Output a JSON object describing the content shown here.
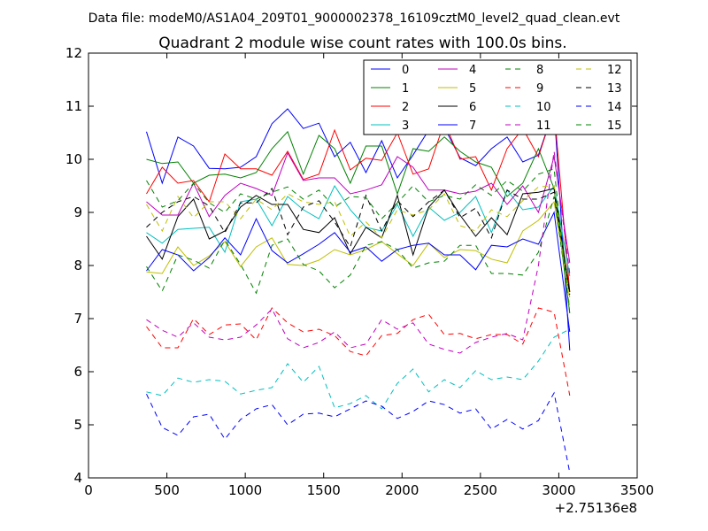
{
  "window": {
    "suptitle": "Data file: modeM0/AS1A04_209T01_9000002378_16109cztM0_level2_quad_clean.evt"
  },
  "chart_data": {
    "type": "line",
    "title": "Quadrant 2 module wise count rates with 100.0s bins.",
    "xlabel": "",
    "ylabel": "",
    "x_offset_label": "+2.75136e8",
    "xlim": [
      0,
      3500
    ],
    "ylim": [
      4,
      12
    ],
    "x_ticks": [
      0,
      500,
      1000,
      1500,
      2000,
      2500,
      3000,
      3500
    ],
    "y_ticks": [
      4,
      5,
      6,
      7,
      8,
      9,
      10,
      11,
      12
    ],
    "grid": false,
    "legend_position": "top-right",
    "x": [
      370,
      470,
      570,
      670,
      770,
      870,
      970,
      1070,
      1170,
      1270,
      1370,
      1470,
      1570,
      1670,
      1770,
      1870,
      1970,
      2070,
      2170,
      2270,
      2370,
      2470,
      2570,
      2670,
      2770,
      2870,
      2970,
      3070
    ],
    "series": [
      {
        "name": "0",
        "color": "#0000ff",
        "style": "solid",
        "values": [
          10.52,
          9.55,
          10.42,
          10.25,
          9.83,
          9.82,
          9.85,
          10.05,
          10.67,
          10.95,
          10.58,
          10.68,
          10.05,
          10.32,
          9.75,
          10.35,
          9.65,
          10.08,
          10.55,
          10.6,
          10.03,
          9.88,
          10.2,
          10.42,
          9.95,
          10.08,
          10.95,
          6.4
        ]
      },
      {
        "name": "1",
        "color": "#008000",
        "style": "solid",
        "values": [
          10.0,
          9.92,
          9.95,
          9.55,
          9.7,
          9.72,
          9.65,
          9.75,
          10.2,
          10.52,
          9.72,
          10.45,
          10.2,
          9.55,
          10.25,
          10.25,
          9.35,
          10.2,
          10.15,
          10.42,
          10.15,
          9.95,
          9.85,
          9.3,
          9.55,
          10.2,
          9.45,
          7.1
        ]
      },
      {
        "name": "2",
        "color": "#ff0000",
        "style": "solid",
        "values": [
          9.35,
          9.85,
          9.55,
          9.6,
          9.2,
          10.1,
          9.82,
          9.82,
          9.7,
          10.15,
          9.62,
          9.72,
          10.55,
          9.8,
          10.02,
          9.98,
          10.5,
          9.72,
          9.82,
          10.7,
          10.0,
          10.05,
          9.42,
          10.2,
          10.58,
          10.05,
          10.95,
          7.5
        ]
      },
      {
        "name": "3",
        "color": "#00bfbf",
        "style": "solid",
        "values": [
          8.62,
          8.42,
          8.68,
          8.7,
          8.72,
          8.25,
          9.2,
          9.25,
          8.75,
          9.3,
          9.05,
          8.88,
          9.5,
          9.05,
          8.72,
          8.65,
          9.15,
          8.55,
          9.1,
          8.85,
          9.0,
          9.3,
          8.62,
          9.42,
          9.05,
          9.1,
          9.5,
          7.8
        ]
      },
      {
        "name": "4",
        "color": "#bf00bf",
        "style": "solid",
        "values": [
          9.2,
          8.95,
          8.95,
          9.55,
          8.92,
          9.32,
          9.55,
          9.45,
          9.32,
          10.12,
          9.6,
          9.65,
          9.65,
          9.35,
          9.42,
          9.52,
          10.05,
          9.85,
          9.42,
          9.42,
          9.35,
          9.4,
          9.55,
          9.15,
          9.5,
          9.0,
          10.05,
          8.05
        ]
      },
      {
        "name": "5",
        "color": "#bfbf00",
        "style": "solid",
        "values": [
          7.88,
          7.85,
          8.35,
          8.0,
          8.18,
          8.45,
          7.98,
          8.35,
          8.52,
          8.02,
          8.0,
          8.1,
          8.3,
          8.2,
          8.3,
          8.45,
          8.22,
          8.0,
          8.42,
          8.15,
          8.3,
          8.28,
          8.12,
          8.05,
          8.65,
          8.85,
          9.2,
          7.4
        ]
      },
      {
        "name": "6",
        "color": "#000000",
        "style": "solid",
        "values": [
          8.55,
          8.12,
          8.92,
          9.25,
          8.5,
          8.65,
          9.1,
          9.32,
          9.15,
          9.15,
          8.68,
          8.62,
          8.9,
          8.22,
          8.72,
          8.52,
          9.32,
          8.2,
          9.1,
          9.42,
          8.95,
          8.55,
          8.9,
          8.58,
          9.35,
          9.38,
          9.45,
          7.5
        ]
      },
      {
        "name": "7",
        "color": "#0000ff",
        "style": "solid",
        "values": [
          7.9,
          8.3,
          8.2,
          7.9,
          8.15,
          8.52,
          8.2,
          8.88,
          8.28,
          8.05,
          8.22,
          8.4,
          8.62,
          8.25,
          8.35,
          8.08,
          8.3,
          8.38,
          8.42,
          8.2,
          8.2,
          7.92,
          8.38,
          8.35,
          8.5,
          8.4,
          9.0,
          6.75
        ]
      },
      {
        "name": "8",
        "color": "#008000",
        "style": "dashed",
        "values": [
          7.98,
          7.52,
          8.2,
          8.1,
          7.95,
          8.48,
          8.02,
          7.48,
          8.38,
          8.5,
          8.02,
          7.9,
          7.58,
          7.82,
          8.38,
          8.45,
          8.3,
          7.95,
          8.05,
          8.08,
          8.38,
          8.38,
          7.85,
          7.85,
          7.82,
          8.25,
          9.3,
          7.2
        ]
      },
      {
        "name": "9",
        "color": "#ff0000",
        "style": "dashed",
        "values": [
          6.85,
          6.45,
          6.45,
          7.0,
          6.7,
          6.88,
          6.9,
          6.6,
          7.2,
          6.92,
          6.75,
          6.8,
          6.68,
          6.38,
          6.3,
          6.68,
          6.72,
          6.98,
          7.08,
          6.7,
          6.72,
          6.62,
          6.7,
          6.7,
          6.52,
          7.2,
          7.12,
          5.55
        ]
      },
      {
        "name": "10",
        "color": "#00bfbf",
        "style": "dashed",
        "values": [
          5.62,
          5.55,
          5.88,
          5.8,
          5.85,
          5.82,
          5.58,
          5.65,
          5.7,
          6.15,
          5.8,
          6.1,
          5.32,
          5.4,
          5.55,
          5.3,
          5.78,
          6.05,
          5.62,
          5.85,
          5.7,
          6.02,
          5.85,
          5.9,
          5.85,
          6.2,
          6.65,
          6.8
        ]
      },
      {
        "name": "11",
        "color": "#bf00bf",
        "style": "dashed",
        "values": [
          6.98,
          6.78,
          6.65,
          6.92,
          6.65,
          6.6,
          6.65,
          6.88,
          7.18,
          6.62,
          6.45,
          6.55,
          6.75,
          6.45,
          6.52,
          6.98,
          6.8,
          6.92,
          6.52,
          6.42,
          6.35,
          6.55,
          6.65,
          6.72,
          6.6,
          8.0,
          10.15,
          7.85
        ]
      },
      {
        "name": "12",
        "color": "#bfbf00",
        "style": "dashed",
        "values": [
          9.15,
          8.65,
          9.3,
          8.9,
          9.2,
          9.2,
          8.88,
          9.25,
          9.05,
          9.35,
          9.2,
          9.15,
          9.2,
          8.55,
          8.82,
          8.52,
          9.05,
          8.95,
          9.05,
          9.35,
          8.75,
          8.65,
          9.05,
          8.92,
          9.22,
          9.48,
          9.5,
          7.2
        ]
      },
      {
        "name": "13",
        "color": "#000000",
        "style": "dashed",
        "values": [
          8.72,
          9.0,
          9.2,
          9.3,
          9.12,
          8.62,
          9.18,
          9.18,
          9.45,
          8.58,
          9.1,
          9.22,
          8.82,
          8.35,
          9.32,
          8.65,
          9.22,
          8.92,
          9.2,
          9.42,
          8.9,
          9.08,
          8.52,
          9.42,
          9.25,
          9.25,
          9.38,
          7.45
        ]
      },
      {
        "name": "14",
        "color": "#0000ff",
        "style": "dashed",
        "values": [
          5.58,
          4.95,
          4.8,
          5.15,
          5.2,
          4.73,
          5.1,
          5.3,
          5.38,
          5.0,
          5.2,
          5.22,
          5.15,
          5.3,
          5.45,
          5.35,
          5.12,
          5.25,
          5.45,
          5.38,
          5.22,
          5.3,
          4.92,
          5.1,
          4.92,
          5.08,
          5.6,
          4.1
        ]
      },
      {
        "name": "15",
        "color": "#008000",
        "style": "dashed",
        "values": [
          9.6,
          9.1,
          9.22,
          9.55,
          9.18,
          9.0,
          9.35,
          9.25,
          9.38,
          9.48,
          9.25,
          9.42,
          9.1,
          9.3,
          9.28,
          8.88,
          9.18,
          9.5,
          9.2,
          9.32,
          9.25,
          9.52,
          9.32,
          9.6,
          9.4,
          9.72,
          9.82,
          7.1
        ]
      }
    ]
  }
}
